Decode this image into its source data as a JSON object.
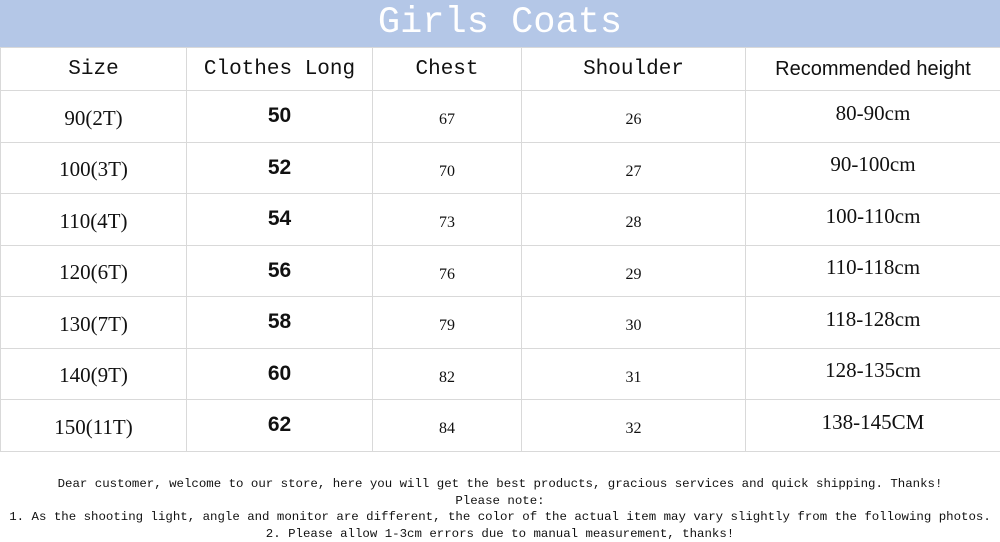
{
  "header": {
    "title": "Girls Coats"
  },
  "table": {
    "columns": [
      "Size",
      "Clothes Long",
      "Chest",
      "Shoulder",
      "Recommended height"
    ],
    "rows": [
      [
        "90(2T)",
        "50",
        "67",
        "26",
        "80-90cm"
      ],
      [
        "100(3T)",
        "52",
        "70",
        "27",
        "90-100cm"
      ],
      [
        "110(4T)",
        "54",
        "73",
        "28",
        "100-110cm"
      ],
      [
        "120(6T)",
        "56",
        "76",
        "29",
        "110-118cm"
      ],
      [
        "130(7T)",
        "58",
        "79",
        "30",
        "118-128cm"
      ],
      [
        "140(9T)",
        "60",
        "82",
        "31",
        "128-135cm"
      ],
      [
        "150(11T)",
        "62",
        "84",
        "32",
        "138-145CM"
      ]
    ]
  },
  "notes": [
    "Dear customer, welcome to our store, here you will get the best products, gracious services and quick shipping. Thanks!",
    "Please note:",
    "1. As the shooting light, angle and monitor are different, the color of the actual item may vary slightly from the following photos.",
    "2. Please allow 1-3cm errors due to manual measurement, thanks!"
  ]
}
